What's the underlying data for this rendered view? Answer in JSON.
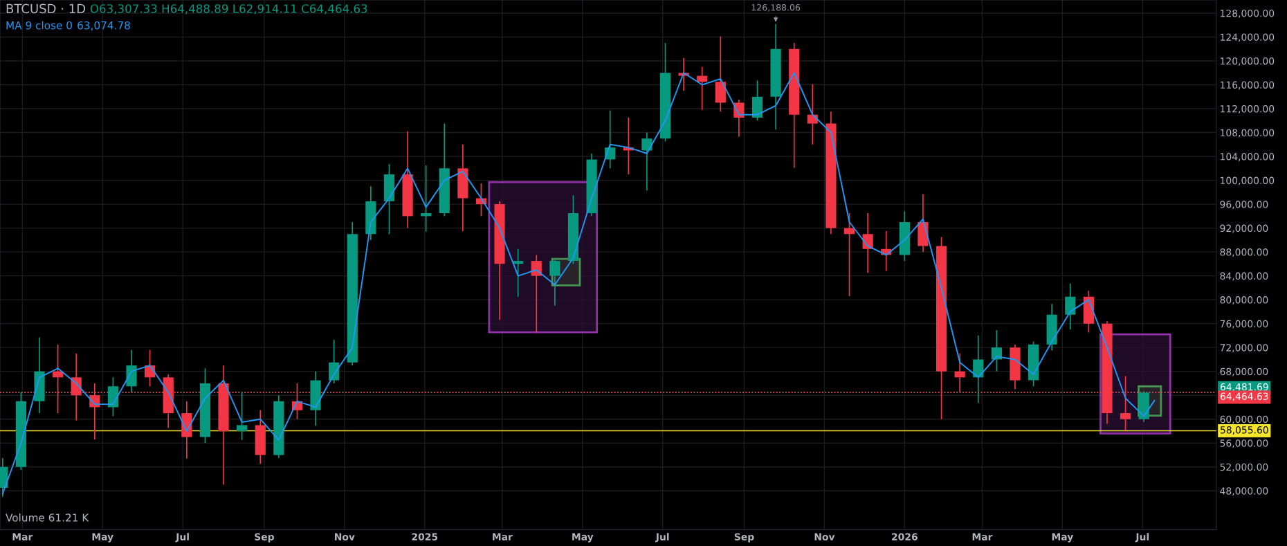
{
  "chart_data": {
    "type": "candlestick",
    "title": "BTCUSD · 1D",
    "x": [
      "2024-02-15",
      "2024-02-29",
      "2024-03-14",
      "2024-03-28",
      "2024-04-11",
      "2024-04-25",
      "2024-05-09",
      "2024-05-23",
      "2024-06-06",
      "2024-06-20",
      "2024-07-04",
      "2024-07-18",
      "2024-08-01",
      "2024-08-15",
      "2024-08-29",
      "2024-09-12",
      "2024-09-26",
      "2024-10-10",
      "2024-10-24",
      "2024-11-07",
      "2024-11-21",
      "2024-12-05",
      "2024-12-19",
      "2025-01-02",
      "2025-01-16",
      "2025-01-30",
      "2025-02-13",
      "2025-02-27",
      "2025-03-13",
      "2025-03-27",
      "2025-04-10",
      "2025-04-24",
      "2025-05-08",
      "2025-05-22",
      "2025-06-05",
      "2025-06-19",
      "2025-07-03",
      "2025-07-17",
      "2025-07-31",
      "2025-08-14",
      "2025-08-28",
      "2025-09-11",
      "2025-09-25",
      "2025-10-09",
      "2025-10-23",
      "2025-11-06",
      "2025-11-20",
      "2025-12-04",
      "2025-12-18",
      "2026-01-01",
      "2026-01-15",
      "2026-01-29",
      "2026-02-12",
      "2026-02-26",
      "2026-03-12",
      "2026-03-26",
      "2026-04-09",
      "2026-04-23",
      "2026-05-07",
      "2026-05-21",
      "2026-06-04",
      "2026-06-18",
      "2026-07-02"
    ],
    "ohlc": [
      [
        48500,
        53500,
        47000,
        52000
      ],
      [
        52000,
        64500,
        51500,
        63000
      ],
      [
        63000,
        73700,
        61000,
        68000
      ],
      [
        68000,
        72500,
        61000,
        67000
      ],
      [
        67000,
        71000,
        59800,
        64000
      ],
      [
        64000,
        66000,
        56600,
        62000
      ],
      [
        62000,
        67000,
        60500,
        65500
      ],
      [
        65500,
        71600,
        64500,
        69000
      ],
      [
        69000,
        71600,
        65500,
        67000
      ],
      [
        67000,
        67500,
        58500,
        61000
      ],
      [
        61000,
        63000,
        53400,
        57000
      ],
      [
        57000,
        68500,
        56000,
        66000
      ],
      [
        66000,
        69000,
        49000,
        58000
      ],
      [
        58000,
        64500,
        56500,
        59000
      ],
      [
        59000,
        61500,
        52500,
        54000
      ],
      [
        54000,
        64000,
        53500,
        63000
      ],
      [
        63000,
        66000,
        60000,
        61500
      ],
      [
        61500,
        68000,
        58900,
        66500
      ],
      [
        66500,
        73300,
        66000,
        69500
      ],
      [
        69500,
        93000,
        69000,
        91000
      ],
      [
        91000,
        99000,
        90000,
        96500
      ],
      [
        96500,
        102700,
        91000,
        101000
      ],
      [
        101000,
        108200,
        92000,
        94000
      ],
      [
        94000,
        102500,
        91400,
        94500
      ],
      [
        94500,
        109500,
        94000,
        102000
      ],
      [
        102000,
        106000,
        91500,
        97000
      ],
      [
        97000,
        99500,
        94000,
        96000
      ],
      [
        96000,
        96500,
        76600,
        86000
      ],
      [
        86000,
        88500,
        80500,
        86500
      ],
      [
        86500,
        87500,
        74500,
        84000
      ],
      [
        84000,
        87000,
        79000,
        86500
      ],
      [
        86500,
        97500,
        86000,
        94500
      ],
      [
        94500,
        104500,
        94000,
        103500
      ],
      [
        103500,
        111700,
        102000,
        105500
      ],
      [
        105500,
        110500,
        101000,
        105000
      ],
      [
        105000,
        108000,
        98300,
        107000
      ],
      [
        107000,
        123000,
        106500,
        118000
      ],
      [
        118000,
        120500,
        115000,
        117500
      ],
      [
        117500,
        119000,
        111800,
        116500
      ],
      [
        116500,
        124100,
        111500,
        113000
      ],
      [
        113000,
        113500,
        107300,
        110500
      ],
      [
        110500,
        116700,
        110000,
        114000
      ],
      [
        114000,
        126188.06,
        108500,
        122000
      ],
      [
        122000,
        123000,
        102100,
        111000
      ],
      [
        111000,
        116100,
        106000,
        109500
      ],
      [
        109500,
        111500,
        91000,
        92000
      ],
      [
        92000,
        94500,
        80600,
        91000
      ],
      [
        91000,
        94500,
        84500,
        88500
      ],
      [
        88500,
        91500,
        84800,
        87500
      ],
      [
        87500,
        94800,
        86500,
        93000
      ],
      [
        93000,
        97700,
        88000,
        89000
      ],
      [
        89000,
        90500,
        60000,
        68000
      ],
      [
        68000,
        71000,
        64500,
        67000
      ],
      [
        67000,
        74000,
        62700,
        70000
      ],
      [
        70000,
        74900,
        68000,
        72000
      ],
      [
        72000,
        72500,
        65000,
        66500
      ],
      [
        66500,
        73000,
        65500,
        72500
      ],
      [
        72500,
        79300,
        71500,
        77500
      ],
      [
        77500,
        82700,
        75000,
        80500
      ],
      [
        80500,
        81500,
        74500,
        76000
      ],
      [
        76000,
        76400,
        59200,
        61000
      ],
      [
        61000,
        67200,
        58100,
        60000
      ],
      [
        60000,
        64700,
        59500,
        64464.63
      ]
    ],
    "series": [
      {
        "type": "line",
        "name": "MA 9 close 0",
        "color": "#2196f3",
        "x": [
          "2024-02-15",
          "2024-02-29",
          "2024-03-14",
          "2024-03-28",
          "2024-04-11",
          "2024-04-25",
          "2024-05-09",
          "2024-05-23",
          "2024-06-06",
          "2024-06-20",
          "2024-07-04",
          "2024-07-18",
          "2024-08-01",
          "2024-08-15",
          "2024-08-29",
          "2024-09-12",
          "2024-09-26",
          "2024-10-10",
          "2024-10-24",
          "2024-11-07",
          "2024-11-21",
          "2024-12-05",
          "2024-12-19",
          "2025-01-02",
          "2025-01-16",
          "2025-01-30",
          "2025-02-13",
          "2025-02-27",
          "2025-03-13",
          "2025-03-27",
          "2025-04-10",
          "2025-04-24",
          "2025-05-08",
          "2025-05-22",
          "2025-06-05",
          "2025-06-19",
          "2025-07-03",
          "2025-07-17",
          "2025-07-31",
          "2025-08-14",
          "2025-08-28",
          "2025-09-11",
          "2025-09-25",
          "2025-10-09",
          "2025-10-23",
          "2025-11-06",
          "2025-11-20",
          "2025-12-04",
          "2025-12-18",
          "2026-01-01",
          "2026-01-15",
          "2026-01-29",
          "2026-02-12",
          "2026-02-26",
          "2026-03-12",
          "2026-03-26",
          "2026-04-09",
          "2026-04-23",
          "2026-05-07",
          "2026-05-21",
          "2026-06-04",
          "2026-06-18",
          "2026-07-02",
          "2026-07-10"
        ],
        "values": [
          47500,
          56000,
          67000,
          68500,
          66000,
          62500,
          62500,
          68000,
          69000,
          64500,
          58000,
          63500,
          66500,
          59500,
          60000,
          56500,
          63000,
          62000,
          67500,
          72000,
          93000,
          97000,
          102000,
          95500,
          100000,
          101500,
          97000,
          92000,
          84000,
          85000,
          82500,
          87000,
          97000,
          106000,
          105500,
          104500,
          110000,
          118000,
          116000,
          117000,
          111000,
          111000,
          112500,
          118000,
          111000,
          108000,
          93000,
          89000,
          87500,
          90000,
          93500,
          82000,
          69500,
          67000,
          70500,
          70000,
          67500,
          73000,
          78000,
          80000,
          72000,
          63500,
          60500,
          63100
        ]
      }
    ],
    "xlim": [
      "2024-02-13",
      "2026-08-26"
    ],
    "xticks": [
      {
        "value": "2024-03-01",
        "label": "Mar"
      },
      {
        "value": "2024-05-01",
        "label": "May"
      },
      {
        "value": "2024-07-01",
        "label": "Jul"
      },
      {
        "value": "2024-09-01",
        "label": "Sep"
      },
      {
        "value": "2024-11-01",
        "label": "Nov"
      },
      {
        "value": "2025-01-01",
        "label": "2025"
      },
      {
        "value": "2025-03-01",
        "label": "Mar"
      },
      {
        "value": "2025-05-01",
        "label": "May"
      },
      {
        "value": "2025-07-01",
        "label": "Jul"
      },
      {
        "value": "2025-09-01",
        "label": "Sep"
      },
      {
        "value": "2025-11-01",
        "label": "Nov"
      },
      {
        "value": "2026-01-01",
        "label": "2026"
      },
      {
        "value": "2026-03-01",
        "label": "Mar"
      },
      {
        "value": "2026-05-01",
        "label": "May"
      },
      {
        "value": "2026-07-01",
        "label": "Jul"
      }
    ],
    "ylim": [
      41500,
      130200
    ],
    "yticks": [
      {
        "value": 48000,
        "label": "48,000.00"
      },
      {
        "value": 52000,
        "label": "52,000.00"
      },
      {
        "value": 56000,
        "label": "56,000.00"
      },
      {
        "value": 60000,
        "label": "60,000.00"
      },
      {
        "value": 64000,
        "label": null
      },
      {
        "value": 68000,
        "label": "68,000.00"
      },
      {
        "value": 72000,
        "label": "72,000.00"
      },
      {
        "value": 76000,
        "label": "76,000.00"
      },
      {
        "value": 80000,
        "label": "80,000.00"
      },
      {
        "value": 84000,
        "label": "84,000.00"
      },
      {
        "value": 88000,
        "label": "88,000.00"
      },
      {
        "value": 92000,
        "label": "92,000.00"
      },
      {
        "value": 96000,
        "label": "96,000.00"
      },
      {
        "value": 100000,
        "label": "100,000.00"
      },
      {
        "value": 104000,
        "label": "104,000.00"
      },
      {
        "value": 108000,
        "label": "108,000.00"
      },
      {
        "value": 112000,
        "label": "112,000.00"
      },
      {
        "value": 116000,
        "label": "116,000.00"
      },
      {
        "value": 120000,
        "label": "120,000.00"
      },
      {
        "value": 124000,
        "label": "124,000.00"
      },
      {
        "value": 128000,
        "label": "128,000.00"
      }
    ],
    "grid": true,
    "ref_lines": [
      {
        "axis": "y",
        "value": 58055.6,
        "label": "58,055.60",
        "color": "#f5e52a",
        "line_style": "solid"
      },
      {
        "axis": "y",
        "value": 64481.69,
        "label": "64,481.69",
        "color": "#089981",
        "line_style": "dotted"
      },
      {
        "axis": "y",
        "value": 64464.63,
        "label": "64,464.63",
        "color": "#f23645",
        "line_style": "dotted"
      }
    ],
    "annotations": [
      "O63,307.33 H64,488.89 L62,914.11 C64,464.63",
      "63,074.78",
      "Volume 61.21 K",
      "126,188.06"
    ]
  }
}
